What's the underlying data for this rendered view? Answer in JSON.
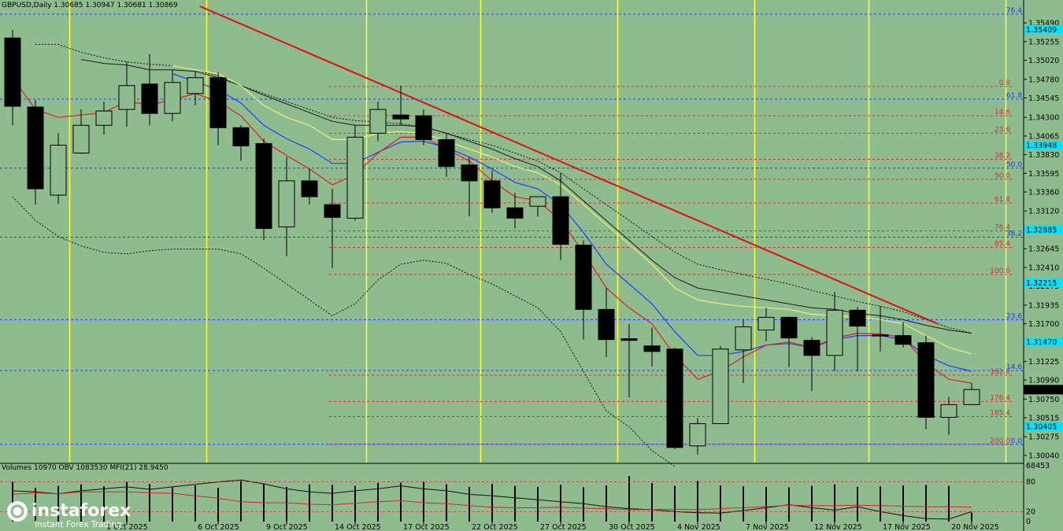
{
  "header": "GBPUSD,Daily  1.30685 1.30947 1.30681 1.30869",
  "indicator_header": "Volumes 10970  OBV 1083530  MFI(21) 28.9450",
  "watermark": {
    "brand": "instaforex",
    "tagline": "Instant Forex Trading"
  },
  "colors": {
    "background": "#8fbc8f",
    "bull_candle": "#8fbc8f",
    "bear_candle": "#000000",
    "trendline": "#e01010",
    "fibo_red": "#d23030",
    "fibo_blue": "#1a3cff",
    "session_line": "#ffff33",
    "ma_red": "#dd1f1f",
    "ma_blue": "#1f3cff",
    "ma_yellow": "#eef07a",
    "price_tag": "#00e5ff"
  },
  "chart_data": {
    "type": "candlestick",
    "symbol": "GBPUSD",
    "timeframe": "Daily",
    "ylim": [
      1.2995,
      1.3566
    ],
    "price_ticks": [
      "1.35490",
      "1.35255",
      "1.35020",
      "1.34780",
      "1.34545",
      "1.34300",
      "1.34065",
      "1.33830",
      "1.33595",
      "1.33360",
      "1.33120",
      "1.32885",
      "1.32645",
      "1.32410",
      "1.32175",
      "1.31935",
      "1.31700",
      "1.31460",
      "1.31225",
      "1.30990",
      "1.30750",
      "1.30515",
      "1.30275",
      "1.30040"
    ],
    "current_price": "1.30869",
    "date_labels": [
      "1 Oct 2025",
      "6 Oct 2025",
      "9 Oct 2025",
      "14 Oct 2025",
      "17 Oct 2025",
      "22 Oct 2025",
      "27 Oct 2025",
      "30 Oct 2025",
      "4 Nov 2025",
      "7 Nov 2025",
      "12 Nov 2025",
      "17 Nov 2025",
      "20 Nov 2025"
    ],
    "date_label_index": [
      5,
      9,
      12,
      15,
      18,
      21,
      24,
      27,
      30,
      33,
      36,
      39,
      42
    ],
    "candles": [
      {
        "o": 1.353,
        "h": 1.354,
        "l": 1.342,
        "c": 1.3444
      },
      {
        "o": 1.3443,
        "h": 1.3452,
        "l": 1.332,
        "c": 1.334
      },
      {
        "o": 1.3332,
        "h": 1.341,
        "l": 1.3321,
        "c": 1.3395
      },
      {
        "o": 1.3385,
        "h": 1.344,
        "l": 1.3384,
        "c": 1.342
      },
      {
        "o": 1.342,
        "h": 1.345,
        "l": 1.3408,
        "c": 1.3438
      },
      {
        "o": 1.344,
        "h": 1.35,
        "l": 1.3418,
        "c": 1.347
      },
      {
        "o": 1.3472,
        "h": 1.351,
        "l": 1.342,
        "c": 1.3435
      },
      {
        "o": 1.3435,
        "h": 1.349,
        "l": 1.3425,
        "c": 1.3474
      },
      {
        "o": 1.346,
        "h": 1.3488,
        "l": 1.3445,
        "c": 1.348
      },
      {
        "o": 1.348,
        "h": 1.3487,
        "l": 1.3395,
        "c": 1.3417
      },
      {
        "o": 1.3417,
        "h": 1.342,
        "l": 1.3375,
        "c": 1.3394
      },
      {
        "o": 1.3397,
        "h": 1.3403,
        "l": 1.3275,
        "c": 1.329
      },
      {
        "o": 1.3292,
        "h": 1.338,
        "l": 1.3255,
        "c": 1.335
      },
      {
        "o": 1.335,
        "h": 1.3365,
        "l": 1.332,
        "c": 1.333
      },
      {
        "o": 1.332,
        "h": 1.334,
        "l": 1.324,
        "c": 1.3304
      },
      {
        "o": 1.3303,
        "h": 1.342,
        "l": 1.33,
        "c": 1.3405
      },
      {
        "o": 1.341,
        "h": 1.345,
        "l": 1.34,
        "c": 1.344
      },
      {
        "o": 1.3433,
        "h": 1.347,
        "l": 1.342,
        "c": 1.3428
      },
      {
        "o": 1.3432,
        "h": 1.344,
        "l": 1.3395,
        "c": 1.3402
      },
      {
        "o": 1.3402,
        "h": 1.341,
        "l": 1.3355,
        "c": 1.3368
      },
      {
        "o": 1.337,
        "h": 1.338,
        "l": 1.3305,
        "c": 1.335
      },
      {
        "o": 1.335,
        "h": 1.3363,
        "l": 1.331,
        "c": 1.3316
      },
      {
        "o": 1.3316,
        "h": 1.3335,
        "l": 1.329,
        "c": 1.3303
      },
      {
        "o": 1.3318,
        "h": 1.333,
        "l": 1.3305,
        "c": 1.333
      },
      {
        "o": 1.333,
        "h": 1.336,
        "l": 1.325,
        "c": 1.327
      },
      {
        "o": 1.3269,
        "h": 1.3275,
        "l": 1.315,
        "c": 1.3188
      },
      {
        "o": 1.3188,
        "h": 1.3215,
        "l": 1.3128,
        "c": 1.315
      },
      {
        "o": 1.3151,
        "h": 1.317,
        "l": 1.3077,
        "c": 1.3149
      },
      {
        "o": 1.3142,
        "h": 1.3165,
        "l": 1.3116,
        "c": 1.3135
      },
      {
        "o": 1.3138,
        "h": 1.314,
        "l": 1.3012,
        "c": 1.3014
      },
      {
        "o": 1.3016,
        "h": 1.3051,
        "l": 1.3005,
        "c": 1.3044
      },
      {
        "o": 1.3044,
        "h": 1.3142,
        "l": 1.3044,
        "c": 1.3138
      },
      {
        "o": 1.3137,
        "h": 1.3175,
        "l": 1.3095,
        "c": 1.3166
      },
      {
        "o": 1.3162,
        "h": 1.319,
        "l": 1.3148,
        "c": 1.3178
      },
      {
        "o": 1.3178,
        "h": 1.3179,
        "l": 1.3115,
        "c": 1.3152
      },
      {
        "o": 1.3149,
        "h": 1.3153,
        "l": 1.3085,
        "c": 1.313
      },
      {
        "o": 1.313,
        "h": 1.321,
        "l": 1.311,
        "c": 1.3187
      },
      {
        "o": 1.3187,
        "h": 1.3191,
        "l": 1.311,
        "c": 1.3167
      },
      {
        "o": 1.3156,
        "h": 1.3192,
        "l": 1.3135,
        "c": 1.3155
      },
      {
        "o": 1.3155,
        "h": 1.3172,
        "l": 1.314,
        "c": 1.3144
      },
      {
        "o": 1.3146,
        "h": 1.3155,
        "l": 1.3037,
        "c": 1.3052
      },
      {
        "o": 1.3052,
        "h": 1.3078,
        "l": 1.303,
        "c": 1.3068
      },
      {
        "o": 1.3068,
        "h": 1.3095,
        "l": 1.3068,
        "c": 1.3087
      }
    ],
    "ma_red": [
      1.348,
      1.344,
      1.343,
      1.3433,
      1.3436,
      1.345,
      1.3446,
      1.3452,
      1.346,
      1.345,
      1.3432,
      1.34,
      1.3382,
      1.3365,
      1.3345,
      1.3358,
      1.3385,
      1.3405,
      1.3405,
      1.339,
      1.3375,
      1.335,
      1.333,
      1.3325,
      1.33,
      1.326,
      1.3215,
      1.319,
      1.317,
      1.313,
      1.31,
      1.311,
      1.3128,
      1.3143,
      1.3147,
      1.314,
      1.3152,
      1.3158,
      1.3157,
      1.3153,
      1.312,
      1.31,
      1.3095
    ],
    "ma_blue": [
      null,
      null,
      null,
      null,
      null,
      null,
      null,
      1.3485,
      1.3475,
      1.3465,
      1.3448,
      1.342,
      1.3403,
      1.339,
      1.3372,
      1.3372,
      1.3386,
      1.3399,
      1.34,
      1.3392,
      1.338,
      1.3365,
      1.3348,
      1.334,
      1.332,
      1.3285,
      1.3245,
      1.322,
      1.3195,
      1.316,
      1.313,
      1.313,
      1.3135,
      1.3143,
      1.3145,
      1.314,
      1.315,
      1.3155,
      1.3155,
      1.315,
      1.313,
      1.3117,
      1.311
    ],
    "ma_yellow": [
      null,
      null,
      null,
      null,
      null,
      null,
      null,
      1.3495,
      1.349,
      1.3485,
      1.347,
      1.3445,
      1.343,
      1.342,
      1.3402,
      1.3402,
      1.341,
      1.3412,
      1.341,
      1.34,
      1.339,
      1.338,
      1.3368,
      1.336,
      1.3345,
      1.332,
      1.3295,
      1.327,
      1.3245,
      1.3215,
      1.32,
      1.3195,
      1.3192,
      1.319,
      1.3188,
      1.3182,
      1.318,
      1.3178,
      1.3175,
      1.317,
      1.3155,
      1.314,
      1.3132
    ],
    "ma_black": [
      null,
      null,
      null,
      1.3503,
      1.3498,
      1.3496,
      1.349,
      1.349,
      1.3488,
      1.348,
      1.347,
      1.3458,
      1.3447,
      1.3436,
      1.3425,
      1.342,
      1.342,
      1.342,
      1.3418,
      1.341,
      1.34,
      1.339,
      1.3378,
      1.3368,
      1.335,
      1.3325,
      1.33,
      1.3275,
      1.325,
      1.3228,
      1.3215,
      1.321,
      1.3205,
      1.32,
      1.3195,
      1.319,
      1.3188,
      1.3183,
      1.318,
      1.3175,
      1.3168,
      1.3162,
      1.3158
    ],
    "envelope_upper": [
      null,
      1.3522,
      1.3522,
      1.3512,
      1.3505,
      1.35,
      1.3497,
      1.3495,
      1.349,
      1.3482,
      1.347,
      1.346,
      1.345,
      1.344,
      1.343,
      1.3426,
      1.3424,
      1.3422,
      1.3418,
      1.341,
      1.3402,
      1.3395,
      1.3385,
      1.3375,
      1.336,
      1.334,
      1.332,
      1.33,
      1.328,
      1.326,
      1.3245,
      1.3238,
      1.3232,
      1.3226,
      1.322,
      1.3212,
      1.3205,
      1.3198,
      1.3192,
      1.3185,
      1.3175,
      1.3165,
      1.3158
    ],
    "envelope_lower": [
      1.333,
      1.33,
      1.328,
      1.3268,
      1.326,
      1.3258,
      1.3262,
      1.3264,
      1.3264,
      1.3264,
      1.3258,
      1.324,
      1.322,
      1.32,
      1.318,
      1.3195,
      1.3225,
      1.3245,
      1.325,
      1.3246,
      1.3232,
      1.322,
      1.3205,
      1.319,
      1.316,
      1.311,
      1.306,
      1.304,
      1.301,
      1.299,
      null,
      null,
      null,
      null,
      null,
      null,
      null,
      null,
      null,
      null,
      null,
      null,
      null
    ],
    "fibo_red_levels": [
      {
        "label": "0.0",
        "price": 1.3469
      },
      {
        "label": "14.6",
        "price": 1.3432
      },
      {
        "label": "23.6",
        "price": 1.341
      },
      {
        "label": "38.2",
        "price": 1.3377
      },
      {
        "label": "50.0",
        "price": 1.3352
      },
      {
        "label": "61.8",
        "price": 1.3322
      },
      {
        "label": "76.4",
        "price": 1.3287
      },
      {
        "label": "85.4",
        "price": 1.3266
      },
      {
        "label": "100.0",
        "price": 1.3232
      },
      {
        "label": "161.8",
        "price": 1.3105
      },
      {
        "label": "176.4",
        "price": 1.3072
      },
      {
        "label": "185.4",
        "price": 1.3053
      },
      {
        "label": "200.0",
        "price": 1.3018
      }
    ],
    "fibo_blue_levels": [
      {
        "label": "76.4",
        "price": 1.356
      },
      {
        "label": "61.8",
        "price": 1.3453
      },
      {
        "label": "50.0",
        "price": 1.3366
      },
      {
        "label": "38.2",
        "price": 1.3279
      },
      {
        "label": "23.6",
        "price": 1.3175
      },
      {
        "label": "14.6",
        "price": 1.3111
      },
      {
        "label": "0.0",
        "price": 1.3018
      }
    ],
    "price_tags": [
      {
        "label": "1.35409",
        "price": 1.35409
      },
      {
        "label": "1.33948",
        "price": 1.33948
      },
      {
        "label": "1.32885",
        "price": 1.32885
      },
      {
        "label": "1.32215",
        "price": 1.32215
      },
      {
        "label": "1.31470",
        "price": 1.3147
      },
      {
        "label": "1.30405",
        "price": 1.30405
      }
    ],
    "session_lines": [
      2.5,
      8.5,
      15.5,
      20.5,
      26.5,
      32.5,
      37.5,
      43.5
    ],
    "trendline": {
      "from": [
        8.2,
        1.357
      ],
      "to": [
        40.5,
        1.317
      ]
    },
    "volumes": [
      80,
      68,
      72,
      75,
      71,
      80,
      76,
      70,
      73,
      68,
      82,
      77,
      70,
      75,
      74,
      72,
      78,
      79,
      80,
      75,
      70,
      76,
      72,
      70,
      74,
      69,
      73,
      92,
      78,
      72,
      82,
      73,
      71,
      70,
      69,
      72,
      75,
      70,
      71,
      73,
      74,
      72,
      18
    ],
    "obv": [
      62,
      60,
      56,
      62,
      66,
      70,
      65,
      70,
      75,
      80,
      84,
      76,
      66,
      60,
      57,
      62,
      66,
      72,
      66,
      62,
      55,
      52,
      48,
      44,
      40,
      36,
      30,
      26,
      24,
      20,
      18,
      17,
      22,
      28,
      34,
      28,
      23,
      30,
      20,
      12,
      6,
      5,
      20
    ],
    "mfi": [
      55,
      58,
      56,
      60,
      60,
      60,
      58,
      57,
      52,
      47,
      40,
      38,
      38,
      35,
      34,
      37,
      40,
      42,
      38,
      36,
      32,
      29,
      28,
      28,
      29,
      27,
      26,
      24,
      24,
      25,
      24,
      26,
      28,
      30,
      33,
      32,
      32,
      33,
      32,
      31,
      30,
      30,
      29
    ],
    "indicator_axis": [
      "68453",
      "80",
      "20",
      "0"
    ]
  }
}
